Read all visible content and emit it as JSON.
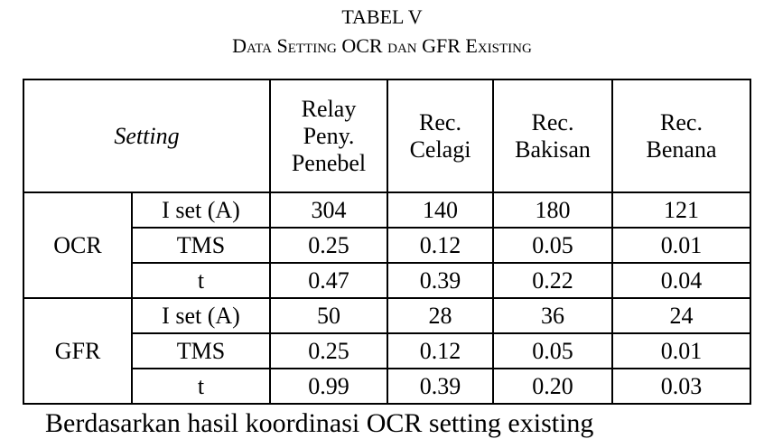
{
  "caption": {
    "title": "TABEL V",
    "subtitle": "Data Setting OCR dan GFR Existing"
  },
  "table": {
    "corner": "Setting",
    "columns": [
      [
        "Relay",
        "Peny.",
        "Penebel"
      ],
      [
        "Rec.",
        "Celagi"
      ],
      [
        "Rec.",
        "Bakisan"
      ],
      [
        "Rec.",
        "Benana"
      ]
    ],
    "groups": [
      {
        "name": "OCR",
        "rows": [
          {
            "param": "I set (A)",
            "values": [
              "304",
              "140",
              "180",
              "121"
            ]
          },
          {
            "param": "TMS",
            "values": [
              "0.25",
              "0.12",
              "0.05",
              "0.01"
            ]
          },
          {
            "param": "t",
            "values": [
              "0.47",
              "0.39",
              "0.22",
              "0.04"
            ]
          }
        ]
      },
      {
        "name": "GFR",
        "rows": [
          {
            "param": "I set (A)",
            "values": [
              "50",
              "28",
              "36",
              "24"
            ]
          },
          {
            "param": "TMS",
            "values": [
              "0.25",
              "0.12",
              "0.05",
              "0.01"
            ]
          },
          {
            "param": "t",
            "values": [
              "0.99",
              "0.39",
              "0.20",
              "0.03"
            ]
          }
        ]
      }
    ]
  },
  "footer_text": "Berdasarkan hasil koordinasi OCR setting existing"
}
